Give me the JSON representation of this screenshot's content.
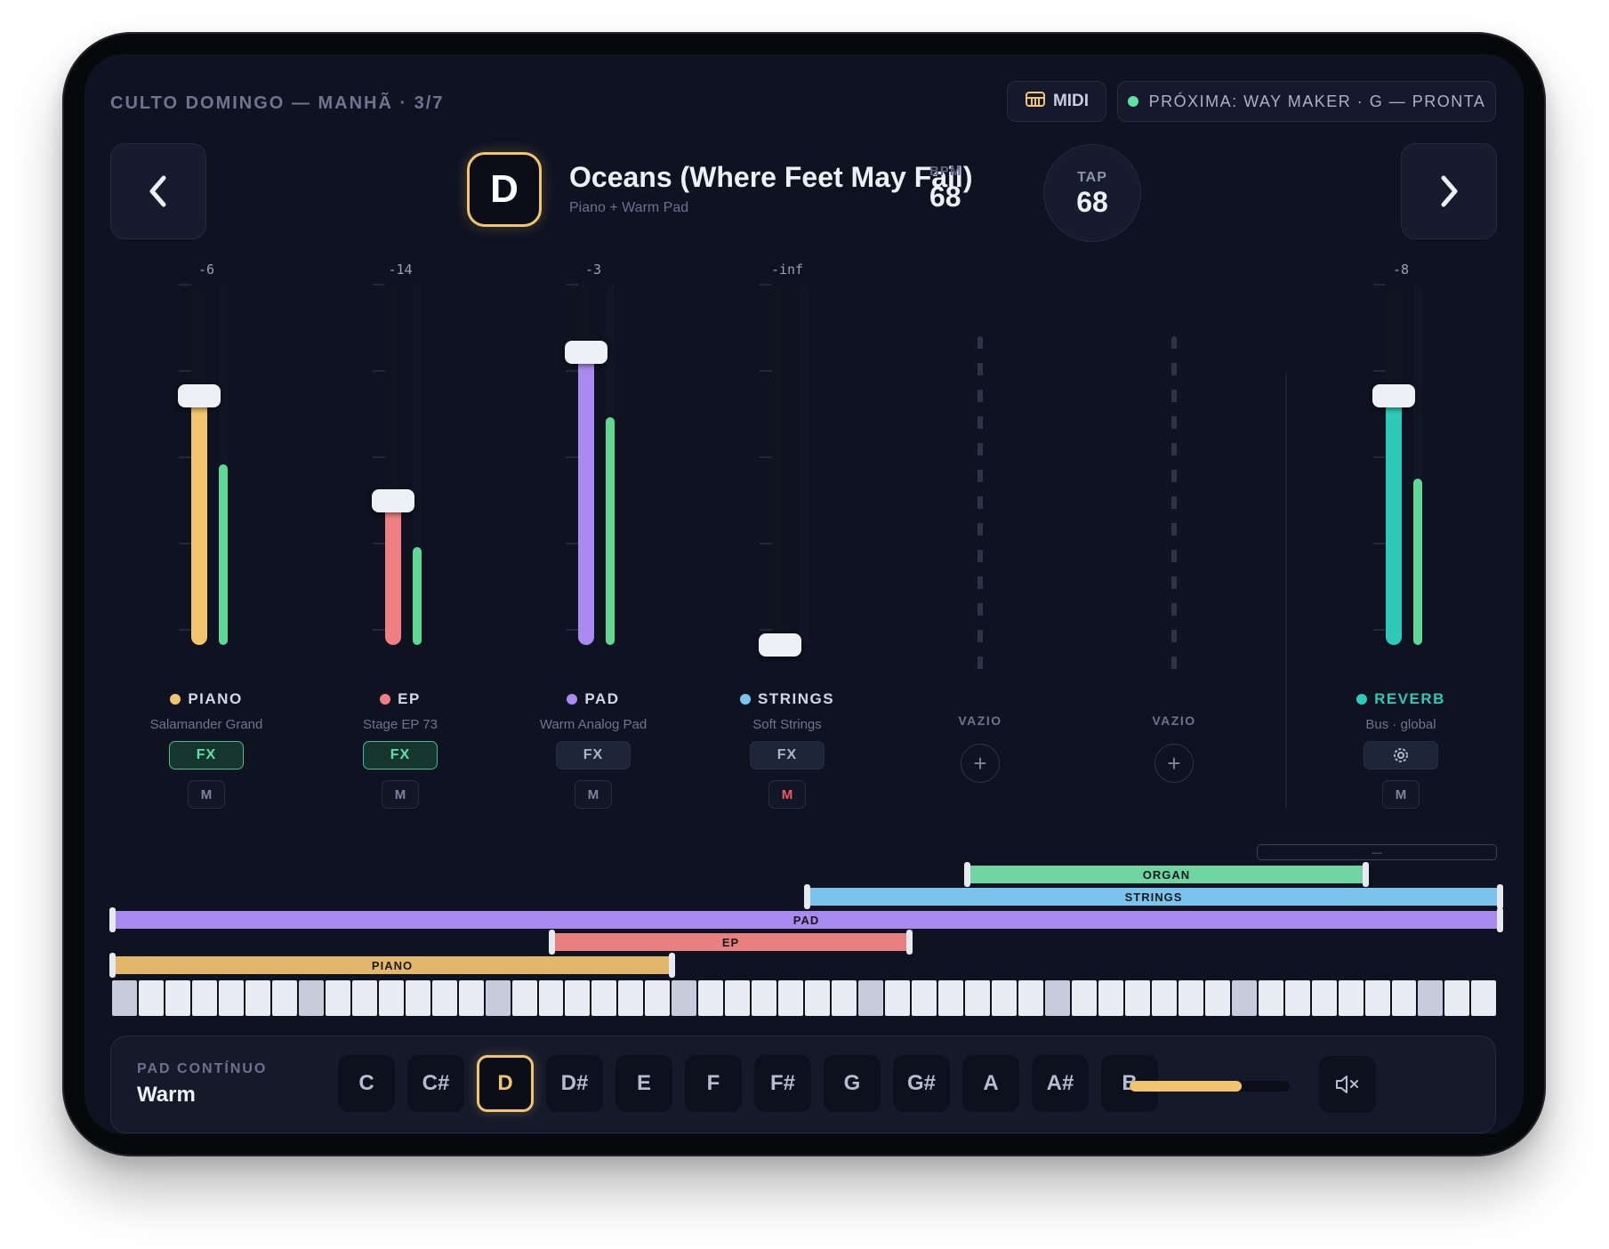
{
  "header": {
    "setlist": "CULTO DOMINGO — MANHÃ · 3/7",
    "midi_label": "MIDI",
    "next_song": "PRÓXIMA: WAY MAKER · G — PRONTA",
    "next_status_color": "#5fe0a5"
  },
  "song": {
    "key": "D",
    "title": "Oceans (Where Feet May Fail)",
    "subtitle": "Piano + Warm Pad",
    "bpm_label": "BPM",
    "bpm": "68",
    "tap_label": "TAP",
    "tap_bpm": "68"
  },
  "channels": [
    {
      "db": "-6",
      "name": "PIANO",
      "patch": "Salamander Grand",
      "fx_label": "FX",
      "fx_on": true,
      "mute_label": "M",
      "muted": false,
      "color": "#f2c46d",
      "fader_level": 0.69,
      "meter_level": 0.5
    },
    {
      "db": "-14",
      "name": "EP",
      "patch": "Stage EP 73",
      "fx_label": "FX",
      "fx_on": true,
      "mute_label": "M",
      "muted": false,
      "color": "#ef7f82",
      "fader_level": 0.4,
      "meter_level": 0.27
    },
    {
      "db": "-3",
      "name": "PAD",
      "patch": "Warm Analog Pad",
      "fx_label": "FX",
      "fx_on": false,
      "mute_label": "M",
      "muted": false,
      "color": "#a88af0",
      "fader_level": 0.81,
      "meter_level": 0.63
    },
    {
      "db": "-inf",
      "name": "STRINGS",
      "patch": "Soft Strings",
      "fx_label": "FX",
      "fx_on": false,
      "mute_label": "M",
      "muted": true,
      "color": "#7cc4f0",
      "fader_level": 0.0,
      "meter_level": 0.0
    }
  ],
  "empty_slots": [
    {
      "label": "VAZIO"
    },
    {
      "label": "VAZIO"
    }
  ],
  "reverb": {
    "db": "-8",
    "name": "REVERB",
    "patch": "Bus · global",
    "mute_label": "M",
    "color": "#2ec9b8",
    "fader_level": 0.69,
    "meter_level": 0.46
  },
  "zones": {
    "empty_label": "—",
    "items": [
      {
        "label": "ORGAN",
        "color": "#6fd5a0"
      },
      {
        "label": "STRINGS",
        "color": "#7cc4f0"
      },
      {
        "label": "PAD",
        "color": "#a88af0"
      },
      {
        "label": "EP",
        "color": "#e98080"
      },
      {
        "label": "PIANO",
        "color": "#e2b76a"
      }
    ]
  },
  "pad": {
    "label": "PAD CONTÍNUO",
    "preset": "Warm",
    "notes": [
      "C",
      "C#",
      "D",
      "D#",
      "E",
      "F",
      "F#",
      "G",
      "G#",
      "A",
      "A#",
      "B"
    ],
    "selected": "D",
    "volume": 0.7
  }
}
